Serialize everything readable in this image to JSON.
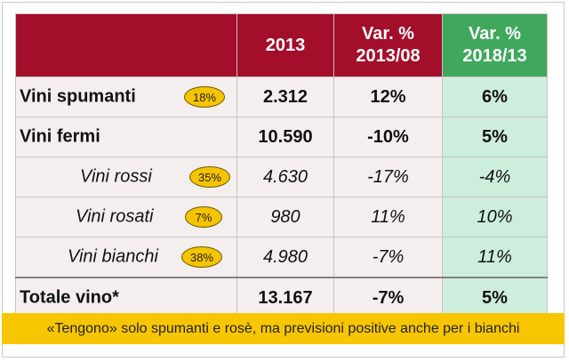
{
  "header": {
    "col_year": "2013",
    "col_var1": "Var. %\n2013/08",
    "col_var2": "Var. %\n2018/13"
  },
  "rows": [
    {
      "label": "Vini spumanti",
      "badge": "18%",
      "value": "2.312",
      "var1": "12%",
      "var2": "6%"
    },
    {
      "label": "Vini fermi",
      "badge": "",
      "value": "10.590",
      "var1": "-10%",
      "var2": "5%"
    },
    {
      "label": "Vini rossi",
      "badge": "35%",
      "value": "4.630",
      "var1": "-17%",
      "var2": "-4%"
    },
    {
      "label": "Vini rosati",
      "badge": "7%",
      "value": "980",
      "var1": "11%",
      "var2": "10%"
    },
    {
      "label": "Vini bianchi",
      "badge": "38%",
      "value": "4.980",
      "var1": "-7%",
      "var2": "11%"
    },
    {
      "label": "Totale vino*",
      "badge": "",
      "value": "13.167",
      "var1": "-7%",
      "var2": "5%"
    }
  ],
  "banner": "«Tengono» solo spumanti e rosè, ma previsioni positive anche per i bianchi",
  "colors": {
    "header": "#a30e2b",
    "header_green": "#3fa85c",
    "row_bg": "#f5eeee",
    "green_col_bg": "#cdeedd",
    "negative": "#c0161d",
    "badge": "#f5c400",
    "banner": "#f7c600"
  }
}
